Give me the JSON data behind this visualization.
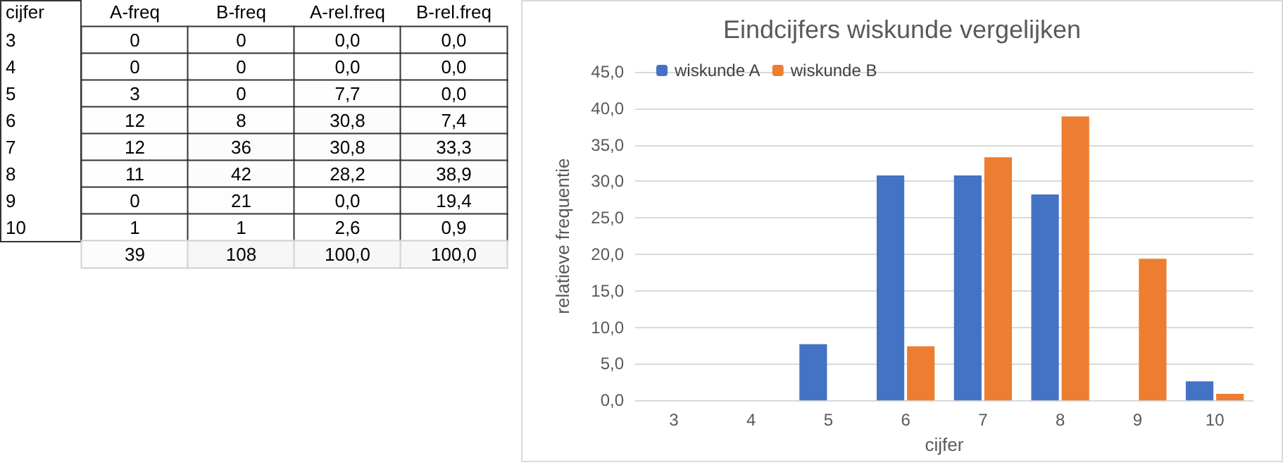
{
  "chart_data": [
    {
      "type": "heatmap",
      "ylabel": "cijfer",
      "categories": [
        "A-freq",
        "B-freq",
        "A-rel.freq",
        "B-rel.freq"
      ],
      "y_categories": [
        "3",
        "4",
        "5",
        "6",
        "7",
        "8",
        "9",
        "10",
        null
      ],
      "cells": [
        [
          0,
          0,
          0,
          0
        ],
        [
          0,
          0,
          0,
          0
        ],
        [
          3,
          0,
          7.7,
          0
        ],
        [
          12,
          8,
          30.8,
          7.4
        ],
        [
          12,
          36,
          30.8,
          33.3
        ],
        [
          11,
          42,
          28.2,
          38.9
        ],
        [
          0,
          21,
          0,
          19.4
        ],
        [
          1,
          1,
          2.6,
          0.9
        ],
        [
          39,
          108,
          100,
          100
        ]
      ],
      "cell_labels": [
        [
          "0",
          "0",
          "0,0",
          "0,0"
        ],
        [
          "0",
          "0",
          "0,0",
          "0,0"
        ],
        [
          "3",
          "0",
          "7,7",
          "0,0"
        ],
        [
          "12",
          "8",
          "30,8",
          "7,4"
        ],
        [
          "12",
          "36",
          "30,8",
          "33,3"
        ],
        [
          "11",
          "42",
          "28,2",
          "38,9"
        ],
        [
          "0",
          "21",
          "0,0",
          "19,4"
        ],
        [
          "1",
          "1",
          "2,6",
          "0,9"
        ],
        [
          "39",
          "108",
          "100,0",
          "100,0"
        ]
      ]
    },
    {
      "type": "bar",
      "title": "Eindcijfers wiskunde vergelijken",
      "xlabel": "cijfer",
      "ylabel": "relatieve frequentie",
      "categories": [
        "3",
        "4",
        "5",
        "6",
        "7",
        "8",
        "9",
        "10"
      ],
      "series": [
        {
          "name": "wiskunde A",
          "color": "#4472c4",
          "values": [
            0,
            0,
            7.7,
            30.8,
            30.8,
            28.2,
            0,
            2.6
          ]
        },
        {
          "name": "wiskunde B",
          "color": "#ed7d31",
          "values": [
            0,
            0,
            0,
            7.4,
            33.3,
            38.9,
            19.4,
            0.9
          ]
        }
      ],
      "ylim": [
        0,
        45
      ],
      "yticks": [
        {
          "value": 0,
          "label": "0,0"
        },
        {
          "value": 5,
          "label": "5,0"
        },
        {
          "value": 10,
          "label": "10,0"
        },
        {
          "value": 15,
          "label": "15,0"
        },
        {
          "value": 20,
          "label": "20,0"
        },
        {
          "value": 25,
          "label": "25,0"
        },
        {
          "value": 30,
          "label": "30,0"
        },
        {
          "value": 35,
          "label": "35,0"
        },
        {
          "value": 40,
          "label": "40,0"
        },
        {
          "value": 45,
          "label": "45,0"
        }
      ],
      "grid": "y",
      "legend": "top left"
    }
  ]
}
